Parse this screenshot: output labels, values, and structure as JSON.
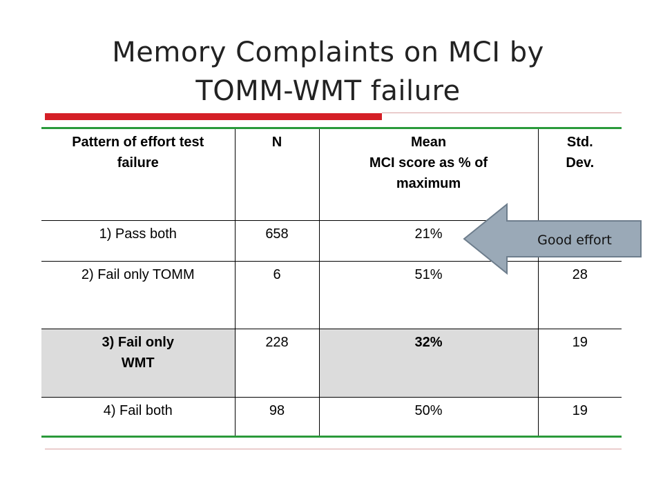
{
  "slide": {
    "title_line1": "Memory Complaints on MCI by",
    "title_line2": "TOMM-WMT failure",
    "accent_color": "#d41f26",
    "table_border_color": "#2a9a3a"
  },
  "table": {
    "headers": {
      "pattern_line1": "Pattern of effort test",
      "pattern_line2": "failure",
      "n": "N",
      "mean_line1": "Mean",
      "mean_line2": "MCI score as % of",
      "mean_line3": "maximum",
      "sd_line1": "Std.",
      "sd_line2": "Dev."
    },
    "rows": [
      {
        "pattern": "1) Pass both",
        "n": "658",
        "mean": "21%",
        "sd": ""
      },
      {
        "pattern": "2) Fail only TOMM",
        "n": "6",
        "mean": "51%",
        "sd": "28"
      },
      {
        "pattern_line1": "3) Fail only",
        "pattern_line2": "WMT",
        "n": "228",
        "mean": "32%",
        "sd": "19"
      },
      {
        "pattern": "4) Fail both",
        "n": "98",
        "mean": "50%",
        "sd": "19"
      }
    ]
  },
  "callout": {
    "text": "Good effort",
    "fill_color": "#9aa9b7"
  }
}
